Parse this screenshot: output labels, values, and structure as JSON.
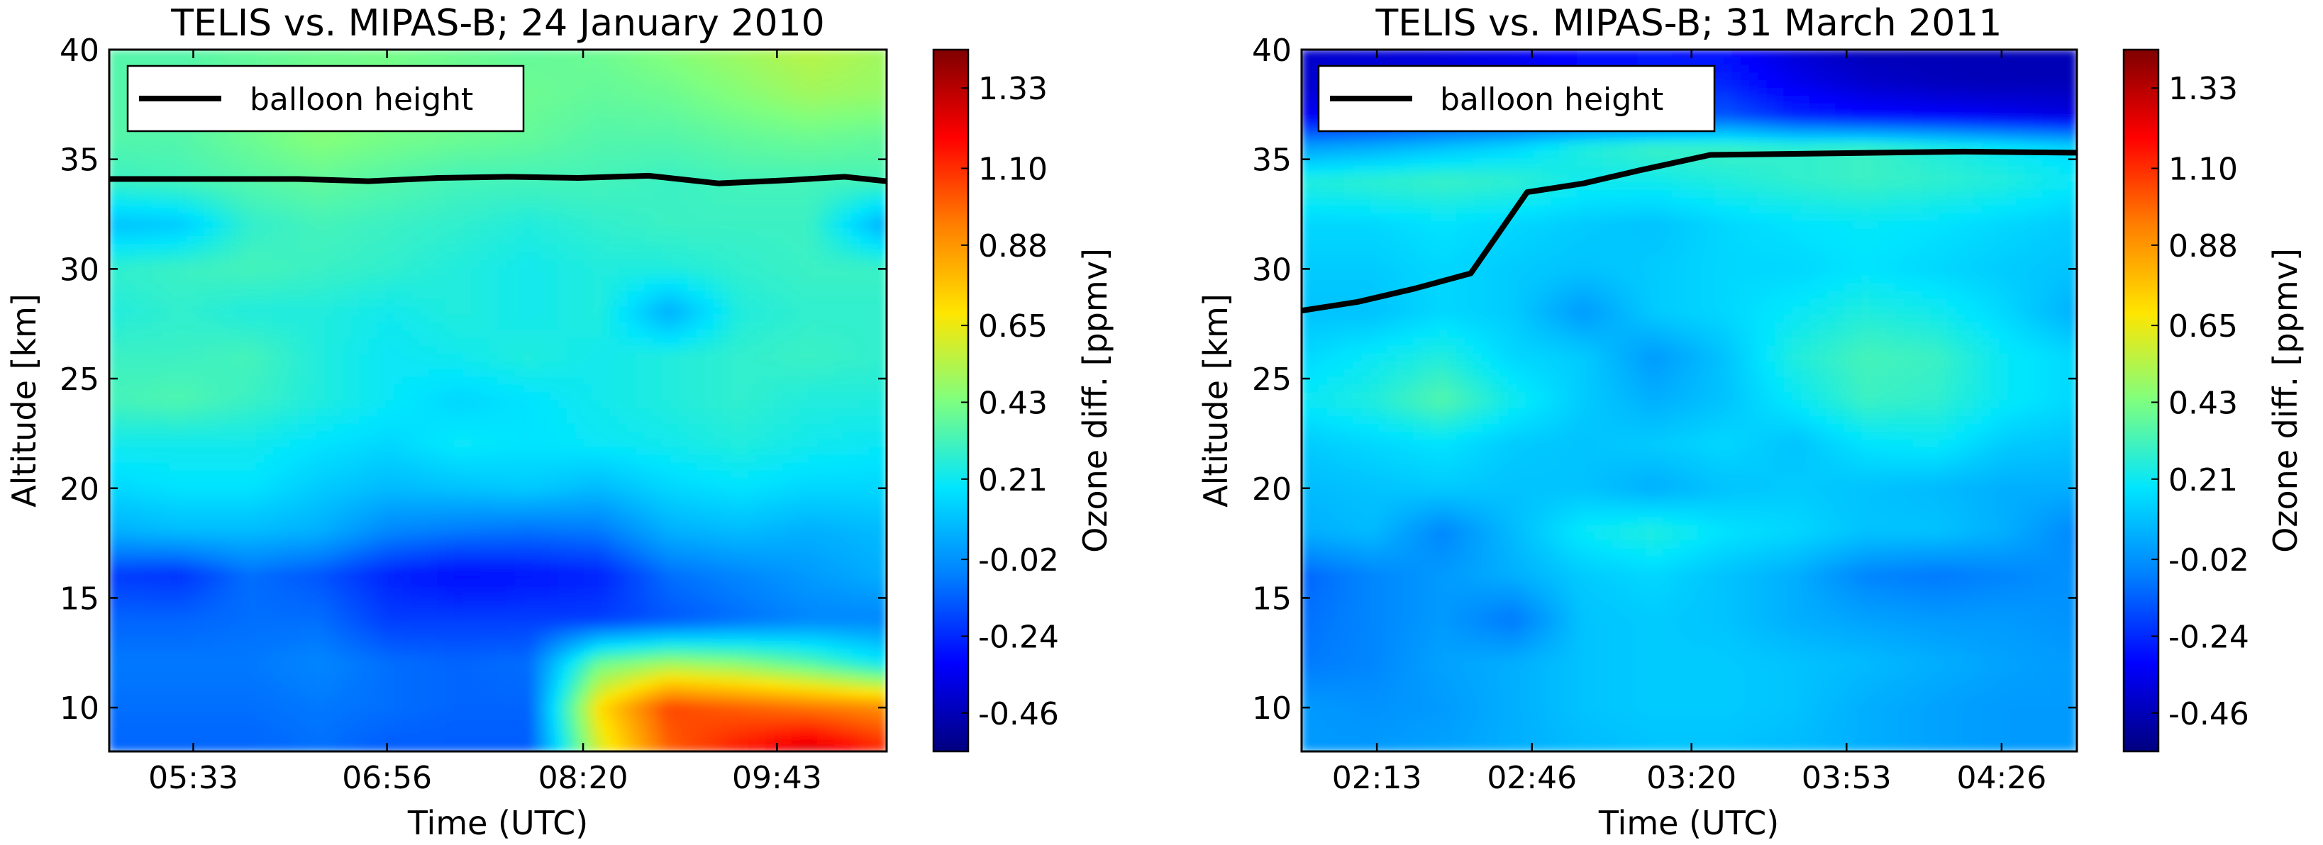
{
  "colorscale": [
    "#00007f",
    "#0000ff",
    "#007fff",
    "#00e5ff",
    "#7fff7f",
    "#ffe500",
    "#ff7f00",
    "#ff0000",
    "#7f0000"
  ],
  "chart_data": [
    {
      "type": "heatmap",
      "title": "TELIS vs. MIPAS-B; 24 January 2010",
      "xlabel": "Time (UTC)",
      "ylabel": "Altitude [km]",
      "colorbar_label": "Ozone diff. [ppmv]",
      "colorbar_ticks": [
        "1.33",
        "1.10",
        "0.88",
        "0.65",
        "0.43",
        "0.21",
        "-0.02",
        "-0.24",
        "-0.46"
      ],
      "clim": [
        -0.57,
        1.44
      ],
      "xlim": [
        4.95,
        10.5
      ],
      "ylim": [
        8,
        40
      ],
      "x_ticks": [
        {
          "value": 5.55,
          "label": "05:33"
        },
        {
          "value": 6.933,
          "label": "06:56"
        },
        {
          "value": 8.333,
          "label": "08:20"
        },
        {
          "value": 9.717,
          "label": "09:43"
        }
      ],
      "y_ticks": [
        10,
        15,
        20,
        25,
        30,
        35,
        40
      ],
      "legend": {
        "label": "balloon height",
        "location": "top-left"
      },
      "balloon_height": {
        "x": [
          4.95,
          6.3,
          6.8,
          7.3,
          7.8,
          8.3,
          8.8,
          9.3,
          9.8,
          10.2,
          10.5
        ],
        "y": [
          34.1,
          34.1,
          34.0,
          34.15,
          34.2,
          34.15,
          34.25,
          33.9,
          34.05,
          34.2,
          34.0
        ]
      },
      "field": {
        "x": [
          4.95,
          5.45,
          5.95,
          6.45,
          6.95,
          7.45,
          7.95,
          8.45,
          8.95,
          9.45,
          9.95,
          10.5
        ],
        "y": [
          8,
          10,
          12,
          14,
          16,
          18,
          20,
          22,
          24,
          26,
          28,
          30,
          32,
          34,
          36,
          38,
          40
        ],
        "values": [
          [
            -0.12,
            -0.12,
            -0.12,
            -0.1,
            -0.14,
            -0.14,
            -0.14,
            0.6,
            1.0,
            1.15,
            1.28,
            1.12
          ],
          [
            -0.1,
            -0.1,
            -0.1,
            -0.08,
            -0.1,
            -0.12,
            -0.12,
            0.7,
            1.05,
            1.0,
            0.95,
            0.9
          ],
          [
            -0.08,
            -0.08,
            -0.08,
            -0.05,
            -0.1,
            -0.12,
            -0.1,
            0.4,
            0.5,
            0.45,
            0.35,
            0.2
          ],
          [
            -0.12,
            -0.12,
            -0.1,
            -0.1,
            -0.2,
            -0.2,
            -0.2,
            -0.2,
            -0.15,
            -0.1,
            -0.05,
            -0.05
          ],
          [
            -0.2,
            -0.22,
            -0.1,
            -0.15,
            -0.25,
            -0.3,
            -0.28,
            -0.25,
            -0.1,
            -0.05,
            0.0,
            0.05
          ],
          [
            0.05,
            0.08,
            0.08,
            0.05,
            -0.05,
            -0.08,
            -0.1,
            -0.08,
            0.05,
            0.08,
            0.05,
            0.08
          ],
          [
            0.15,
            0.18,
            0.18,
            0.12,
            0.08,
            0.1,
            0.12,
            0.08,
            0.15,
            0.18,
            0.15,
            0.15
          ],
          [
            0.22,
            0.22,
            0.22,
            0.18,
            0.15,
            0.2,
            0.18,
            0.2,
            0.22,
            0.25,
            0.22,
            0.2
          ],
          [
            0.32,
            0.34,
            0.3,
            0.25,
            0.2,
            0.15,
            0.18,
            0.22,
            0.25,
            0.28,
            0.25,
            0.25
          ],
          [
            0.3,
            0.3,
            0.32,
            0.25,
            0.2,
            0.22,
            0.25,
            0.22,
            0.25,
            0.28,
            0.3,
            0.28
          ],
          [
            0.25,
            0.28,
            0.25,
            0.25,
            0.22,
            0.25,
            0.22,
            0.25,
            0.05,
            0.25,
            0.28,
            0.28
          ],
          [
            0.28,
            0.3,
            0.32,
            0.3,
            0.28,
            0.25,
            0.22,
            0.25,
            0.25,
            0.28,
            0.3,
            0.3
          ],
          [
            0.1,
            0.12,
            0.28,
            0.32,
            0.3,
            0.28,
            0.25,
            0.28,
            0.3,
            0.3,
            0.3,
            0.05
          ],
          [
            0.3,
            0.32,
            0.35,
            0.38,
            0.35,
            0.32,
            0.32,
            0.32,
            0.3,
            0.32,
            0.32,
            0.32
          ],
          [
            0.35,
            0.35,
            0.4,
            0.45,
            0.42,
            0.4,
            0.38,
            0.35,
            0.35,
            0.38,
            0.4,
            0.38
          ],
          [
            0.35,
            0.35,
            0.38,
            0.42,
            0.4,
            0.4,
            0.4,
            0.38,
            0.4,
            0.45,
            0.5,
            0.48
          ],
          [
            0.35,
            0.35,
            0.38,
            0.4,
            0.42,
            0.4,
            0.38,
            0.4,
            0.45,
            0.5,
            0.55,
            0.5
          ]
        ]
      }
    },
    {
      "type": "heatmap",
      "title": "TELIS vs. MIPAS-B; 31 March 2011",
      "xlabel": "Time (UTC)",
      "ylabel": "Altitude [km]",
      "colorbar_label": "Ozone diff. [ppmv]",
      "colorbar_ticks": [
        "1.33",
        "1.10",
        "0.88",
        "0.65",
        "0.43",
        "0.21",
        "-0.02",
        "-0.24",
        "-0.46"
      ],
      "clim": [
        -0.57,
        1.44
      ],
      "xlim": [
        1.95,
        4.7
      ],
      "ylim": [
        8,
        40
      ],
      "x_ticks": [
        {
          "value": 2.217,
          "label": "02:13"
        },
        {
          "value": 2.767,
          "label": "02:46"
        },
        {
          "value": 3.333,
          "label": "03:20"
        },
        {
          "value": 3.883,
          "label": "03:53"
        },
        {
          "value": 4.433,
          "label": "04:26"
        }
      ],
      "y_ticks": [
        10,
        15,
        20,
        25,
        30,
        35,
        40
      ],
      "legend": {
        "label": "balloon height",
        "location": "top-left"
      },
      "balloon_height": {
        "x": [
          1.95,
          2.15,
          2.35,
          2.55,
          2.75,
          2.95,
          3.15,
          3.4,
          3.7,
          4.0,
          4.3,
          4.7
        ],
        "y": [
          28.1,
          28.5,
          29.1,
          29.8,
          33.5,
          33.9,
          34.5,
          35.2,
          35.25,
          35.3,
          35.35,
          35.3
        ]
      },
      "field": {
        "x": [
          1.95,
          2.2,
          2.45,
          2.7,
          2.95,
          3.2,
          3.45,
          3.7,
          3.95,
          4.2,
          4.45,
          4.7
        ],
        "y": [
          8,
          10,
          12,
          14,
          16,
          18,
          20,
          22,
          24,
          26,
          28,
          30,
          32,
          34,
          35.5,
          37,
          38.5,
          40
        ],
        "values": [
          [
            0.0,
            0.0,
            0.02,
            0.05,
            0.08,
            0.1,
            0.1,
            0.08,
            0.05,
            0.02,
            0.0,
            0.0
          ],
          [
            0.0,
            -0.02,
            0.0,
            0.05,
            0.1,
            0.12,
            0.12,
            0.1,
            0.05,
            0.02,
            0.0,
            0.0
          ],
          [
            -0.08,
            -0.05,
            0.02,
            0.05,
            0.1,
            0.12,
            0.12,
            0.1,
            0.08,
            0.05,
            0.02,
            0.0
          ],
          [
            -0.1,
            -0.05,
            0.0,
            -0.08,
            0.1,
            0.12,
            0.1,
            0.05,
            0.02,
            0.0,
            0.0,
            -0.02
          ],
          [
            -0.12,
            -0.05,
            0.0,
            0.05,
            0.12,
            0.15,
            0.1,
            0.05,
            -0.05,
            -0.08,
            -0.05,
            -0.02
          ],
          [
            0.05,
            0.08,
            -0.05,
            0.08,
            0.2,
            0.25,
            0.18,
            0.15,
            0.1,
            0.1,
            0.05,
            -0.05
          ],
          [
            0.08,
            0.1,
            0.12,
            0.1,
            0.1,
            0.05,
            0.1,
            0.12,
            0.1,
            0.08,
            0.05,
            0.05
          ],
          [
            0.12,
            0.15,
            0.18,
            0.12,
            0.1,
            0.12,
            0.15,
            0.1,
            0.18,
            0.2,
            0.12,
            0.1
          ],
          [
            0.2,
            0.25,
            0.35,
            0.22,
            0.12,
            0.05,
            0.1,
            0.2,
            0.3,
            0.28,
            0.2,
            0.15
          ],
          [
            0.15,
            0.2,
            0.25,
            0.15,
            0.12,
            0.0,
            0.1,
            0.25,
            0.32,
            0.3,
            0.2,
            0.15
          ],
          [
            0.1,
            0.1,
            0.15,
            0.12,
            0.0,
            0.12,
            0.15,
            0.2,
            0.25,
            0.22,
            0.15,
            0.05
          ],
          [
            0.12,
            0.12,
            0.15,
            0.12,
            0.1,
            0.12,
            0.15,
            0.15,
            0.18,
            0.15,
            0.12,
            0.1
          ],
          [
            0.15,
            0.15,
            0.18,
            0.15,
            0.12,
            0.1,
            0.15,
            0.18,
            0.2,
            0.18,
            0.15,
            0.12
          ],
          [
            0.25,
            0.28,
            0.3,
            0.28,
            0.22,
            0.22,
            0.25,
            0.28,
            0.3,
            0.28,
            0.25,
            0.2
          ],
          [
            0.02,
            0.05,
            0.1,
            0.15,
            0.25,
            0.3,
            0.3,
            0.28,
            0.3,
            0.25,
            0.2,
            0.15
          ],
          [
            -0.35,
            -0.3,
            -0.25,
            -0.22,
            -0.2,
            -0.2,
            -0.15,
            -0.25,
            -0.3,
            -0.32,
            -0.35,
            -0.38
          ],
          [
            -0.42,
            -0.4,
            -0.38,
            -0.35,
            -0.3,
            -0.28,
            -0.25,
            -0.35,
            -0.42,
            -0.45,
            -0.46,
            -0.46
          ],
          [
            -0.42,
            -0.4,
            -0.38,
            -0.35,
            -0.3,
            -0.28,
            -0.3,
            -0.4,
            -0.46,
            -0.46,
            -0.46,
            -0.46
          ]
        ]
      }
    }
  ]
}
